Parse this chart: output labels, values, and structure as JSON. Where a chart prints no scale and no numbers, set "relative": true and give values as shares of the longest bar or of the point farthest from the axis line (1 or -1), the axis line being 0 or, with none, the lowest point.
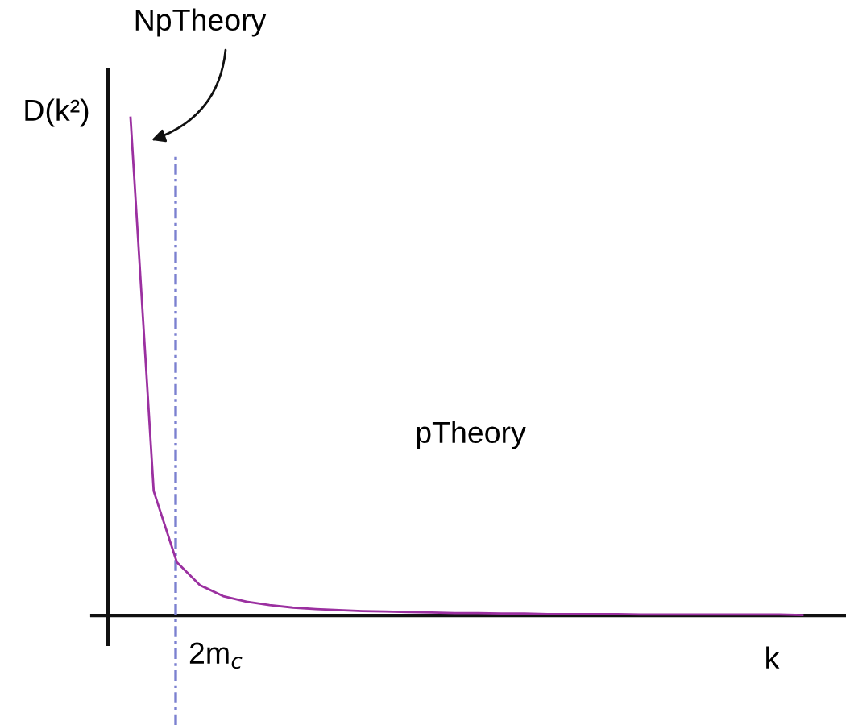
{
  "chart_data": {
    "type": "line",
    "relative": true,
    "xlabel": "k",
    "ylabel": "D(k²)",
    "annotations": [
      "NpTheory",
      "pTheory",
      "2m$_{c}$"
    ],
    "categories": [
      null,
      null,
      null,
      null,
      null,
      null,
      null,
      null,
      null,
      null,
      null,
      null,
      null,
      null,
      null,
      null,
      null,
      null,
      null,
      null,
      null,
      null,
      null,
      null,
      null,
      null,
      null,
      null,
      null,
      null
    ],
    "series": [
      {
        "color": "#9b30a0",
        "values": [
          1,
          0.25,
          0.107,
          0.061,
          0.039,
          0.028,
          0.021,
          0.016,
          0.013,
          0.011,
          0.009,
          0.008,
          0.007,
          0.006,
          0.005,
          0.005,
          0.004,
          0.004,
          0.003,
          0.003,
          0.003,
          0.003,
          0.002,
          0.002,
          0.002,
          0.002,
          0.002,
          0.002,
          0.002,
          0.001
        ]
      }
    ],
    "marker": "none",
    "line_style": "solid"
  }
}
